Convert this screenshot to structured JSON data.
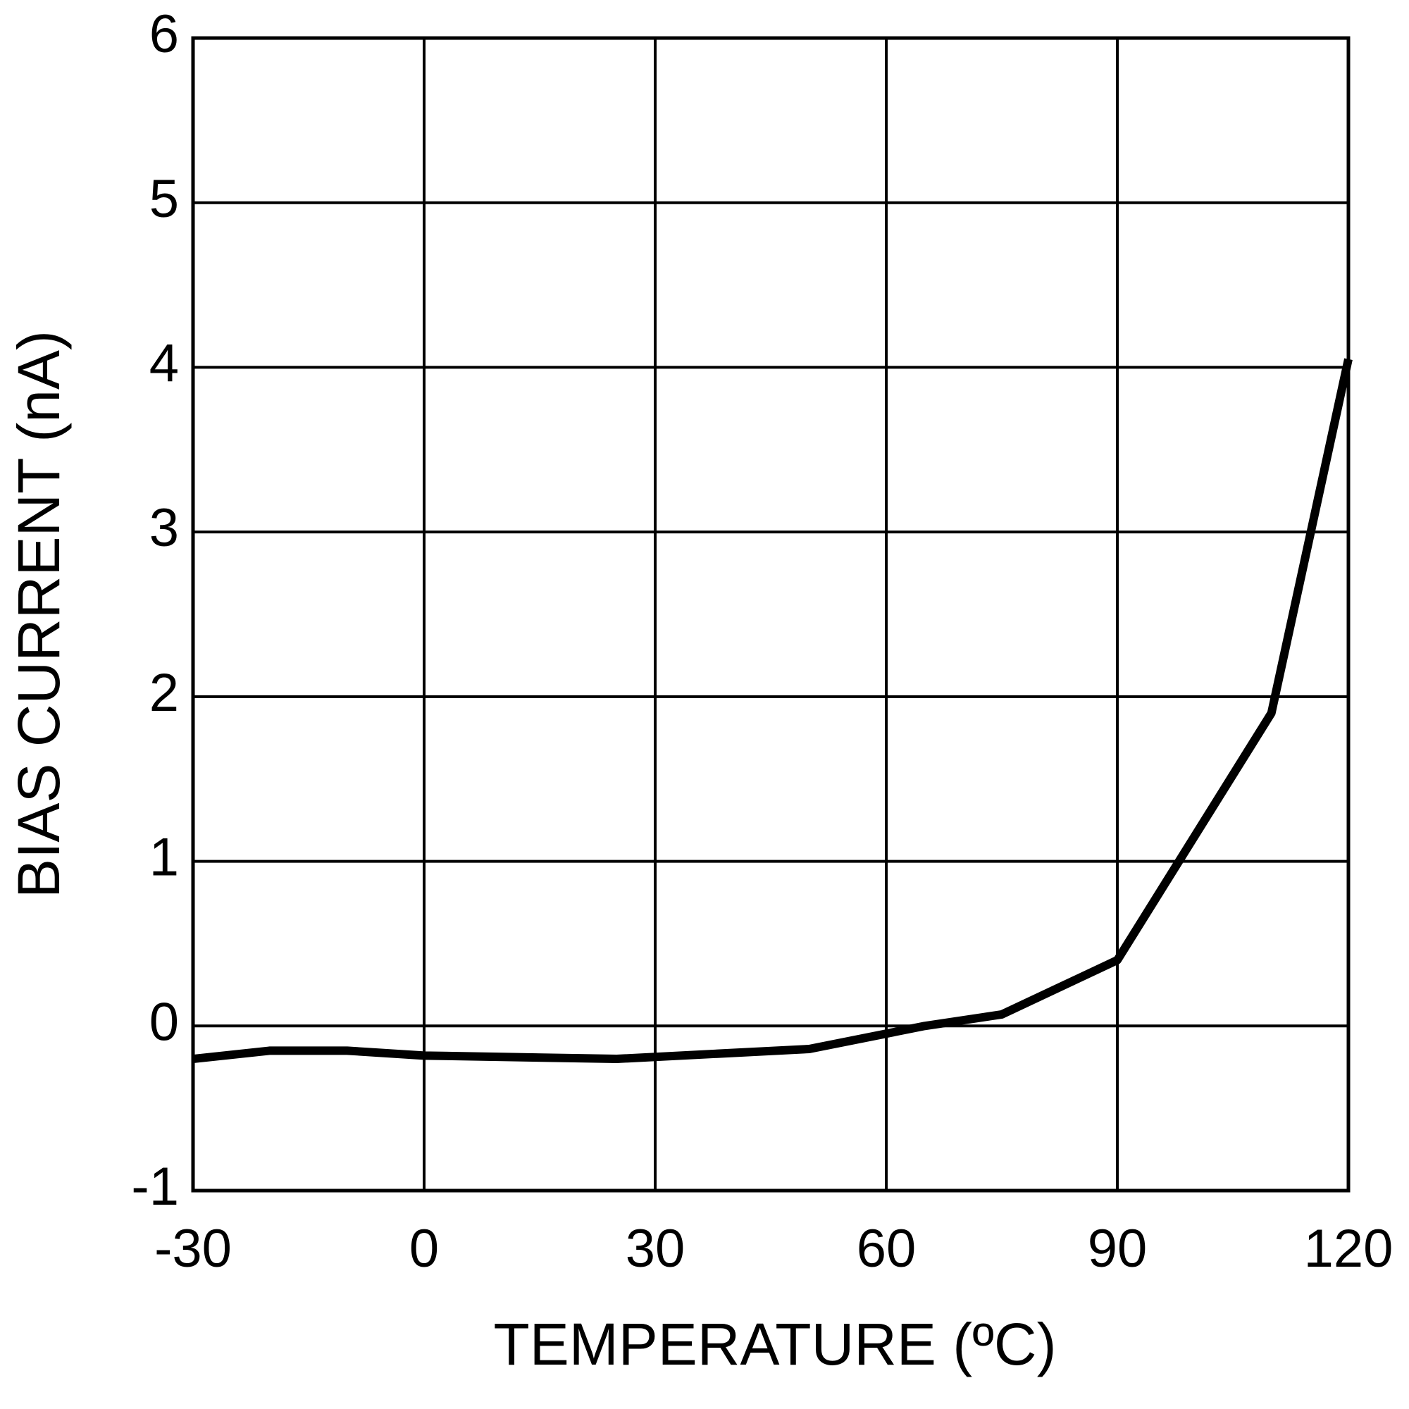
{
  "chart_data": {
    "type": "line",
    "x_label": "TEMPERATURE (ºC)",
    "y_label": "BIAS CURRENT (nA)",
    "x": [
      -30,
      -20,
      -10,
      0,
      25,
      50,
      65,
      75,
      90,
      110,
      120
    ],
    "values": [
      -0.2,
      -0.15,
      -0.15,
      -0.18,
      -0.2,
      -0.14,
      0,
      0.07,
      0.4,
      1.9,
      4.05
    ],
    "color": "#000000",
    "xlim": [
      -30,
      120
    ],
    "xticks": [
      -30,
      0,
      30,
      60,
      90,
      120
    ],
    "ylim": [
      -1,
      6
    ],
    "yticks": [
      -1,
      0,
      1,
      2,
      3,
      4,
      5,
      6
    ],
    "grid": true
  }
}
